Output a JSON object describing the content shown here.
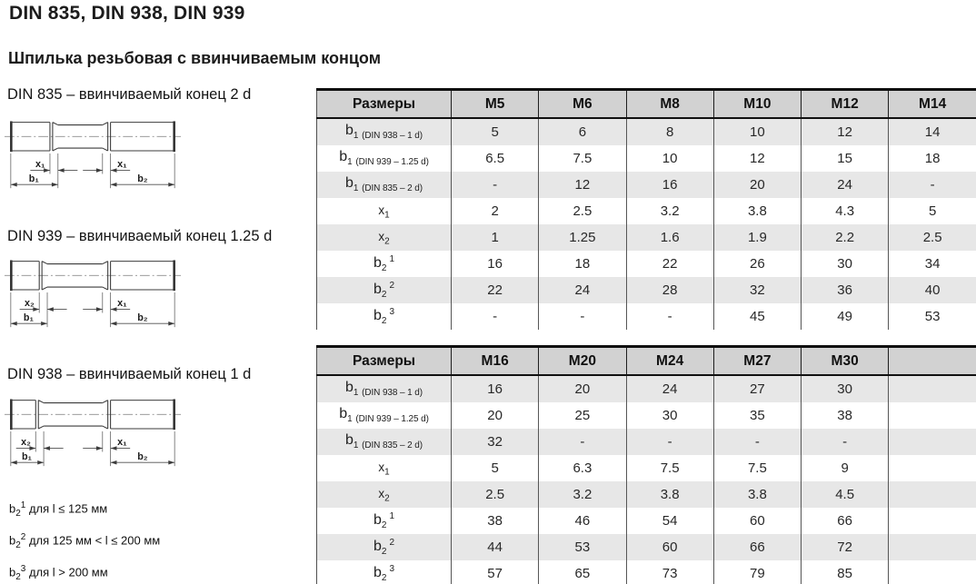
{
  "page": {
    "title": "DIN 835, DIN 938, DIN 939",
    "subtitle": "Шпилька резьбовая с ввинчиваемым концом"
  },
  "colors": {
    "header_bg": "#d2d2d2",
    "row_shade": "#e7e7e7",
    "border_dark": "#111111",
    "grid_line": "#565656",
    "text": "#1c1c1c"
  },
  "drawings": [
    {
      "caption": "DIN 835 – ввинчиваемый конец 2 d",
      "dims": {
        "left_x": "x₁",
        "left_b": "b₁",
        "right_x": "x₁",
        "right_b": "b₂"
      }
    },
    {
      "caption": "DIN 939 – ввинчиваемый конец 1.25 d",
      "dims": {
        "left_x": "x₂",
        "left_b": "b₁",
        "right_x": "x₁",
        "right_b": "b₂"
      }
    },
    {
      "caption": "DIN 938 – ввинчиваемый конец 1 d",
      "dims": {
        "left_x": "x₂",
        "left_b": "b₁",
        "right_x": "x₁",
        "right_b": "b₂"
      }
    }
  ],
  "footnotes": [
    {
      "base": "b",
      "sub": "2",
      "sup": "1",
      "text": "для l ≤ 125 мм"
    },
    {
      "base": "b",
      "sub": "2",
      "sup": "2",
      "text": "для 125 мм < l ≤ 200 мм"
    },
    {
      "base": "b",
      "sub": "2",
      "sup": "3",
      "text": "для l > 200 мм"
    }
  ],
  "tables": [
    {
      "header": [
        "Размеры",
        "M5",
        "M6",
        "M8",
        "M10",
        "M12",
        "M14"
      ],
      "rows": [
        {
          "label": {
            "base": "b",
            "sub": "1",
            "sup": "",
            "note": "(DIN 938 – 1 d)"
          },
          "values": [
            "5",
            "6",
            "8",
            "10",
            "12",
            "14"
          ]
        },
        {
          "label": {
            "base": "b",
            "sub": "1",
            "sup": "",
            "note": "(DIN 939 – 1.25 d)"
          },
          "values": [
            "6.5",
            "7.5",
            "10",
            "12",
            "15",
            "18"
          ]
        },
        {
          "label": {
            "base": "b",
            "sub": "1",
            "sup": "",
            "note": "(DIN 835 – 2 d)"
          },
          "values": [
            "-",
            "12",
            "16",
            "20",
            "24",
            "-"
          ]
        },
        {
          "label": {
            "base": "x",
            "sub": "1",
            "sup": "",
            "note": ""
          },
          "values": [
            "2",
            "2.5",
            "3.2",
            "3.8",
            "4.3",
            "5"
          ]
        },
        {
          "label": {
            "base": "x",
            "sub": "2",
            "sup": "",
            "note": ""
          },
          "values": [
            "1",
            "1.25",
            "1.6",
            "1.9",
            "2.2",
            "2.5"
          ]
        },
        {
          "label": {
            "base": "b",
            "sub": "2",
            "sup": "1",
            "note": ""
          },
          "values": [
            "16",
            "18",
            "22",
            "26",
            "30",
            "34"
          ]
        },
        {
          "label": {
            "base": "b",
            "sub": "2",
            "sup": "2",
            "note": ""
          },
          "values": [
            "22",
            "24",
            "28",
            "32",
            "36",
            "40"
          ]
        },
        {
          "label": {
            "base": "b",
            "sub": "2",
            "sup": "3",
            "note": ""
          },
          "values": [
            "-",
            "-",
            "-",
            "45",
            "49",
            "53"
          ]
        }
      ]
    },
    {
      "header": [
        "Размеры",
        "M16",
        "M20",
        "M24",
        "M27",
        "M30",
        ""
      ],
      "rows": [
        {
          "label": {
            "base": "b",
            "sub": "1",
            "sup": "",
            "note": "(DIN 938 – 1 d)"
          },
          "values": [
            "16",
            "20",
            "24",
            "27",
            "30",
            ""
          ]
        },
        {
          "label": {
            "base": "b",
            "sub": "1",
            "sup": "",
            "note": "(DIN 939 – 1.25 d)"
          },
          "values": [
            "20",
            "25",
            "30",
            "35",
            "38",
            ""
          ]
        },
        {
          "label": {
            "base": "b",
            "sub": "1",
            "sup": "",
            "note": "(DIN 835 – 2 d)"
          },
          "values": [
            "32",
            "-",
            "-",
            "-",
            "-",
            ""
          ]
        },
        {
          "label": {
            "base": "x",
            "sub": "1",
            "sup": "",
            "note": ""
          },
          "values": [
            "5",
            "6.3",
            "7.5",
            "7.5",
            "9",
            ""
          ]
        },
        {
          "label": {
            "base": "x",
            "sub": "2",
            "sup": "",
            "note": ""
          },
          "values": [
            "2.5",
            "3.2",
            "3.8",
            "3.8",
            "4.5",
            ""
          ]
        },
        {
          "label": {
            "base": "b",
            "sub": "2",
            "sup": "1",
            "note": ""
          },
          "values": [
            "38",
            "46",
            "54",
            "60",
            "66",
            ""
          ]
        },
        {
          "label": {
            "base": "b",
            "sub": "2",
            "sup": "2",
            "note": ""
          },
          "values": [
            "44",
            "53",
            "60",
            "66",
            "72",
            ""
          ]
        },
        {
          "label": {
            "base": "b",
            "sub": "2",
            "sup": "3",
            "note": ""
          },
          "values": [
            "57",
            "65",
            "73",
            "79",
            "85",
            ""
          ]
        }
      ]
    }
  ]
}
